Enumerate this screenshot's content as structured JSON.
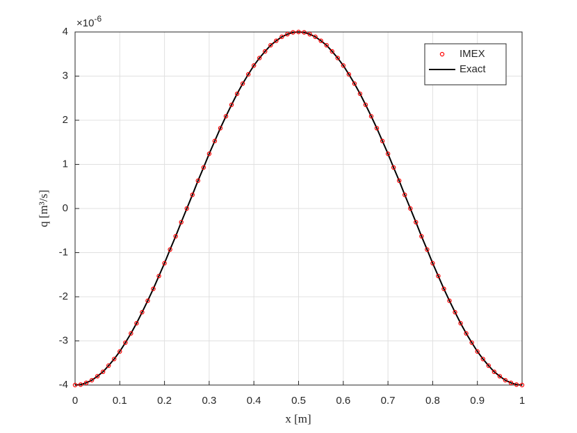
{
  "chart_data": {
    "type": "line",
    "xlabel": "x [m]",
    "ylabel": "q [m³/s]",
    "y_multiplier": {
      "base": "×10",
      "exponent": "-6"
    },
    "x": [
      0,
      0.0125,
      0.025,
      0.0375,
      0.05,
      0.0625,
      0.075,
      0.0875,
      0.1,
      0.1125,
      0.125,
      0.1375,
      0.15,
      0.1625,
      0.175,
      0.1875,
      0.2,
      0.2125,
      0.225,
      0.2375,
      0.25,
      0.2625,
      0.275,
      0.2875,
      0.3,
      0.3125,
      0.325,
      0.3375,
      0.35,
      0.3625,
      0.375,
      0.3875,
      0.4,
      0.4125,
      0.425,
      0.4375,
      0.45,
      0.4625,
      0.475,
      0.4875,
      0.5,
      0.5125,
      0.525,
      0.5375,
      0.55,
      0.5625,
      0.575,
      0.5875,
      0.6,
      0.6125,
      0.625,
      0.6375,
      0.65,
      0.6625,
      0.675,
      0.6875,
      0.7,
      0.7125,
      0.725,
      0.7375,
      0.75,
      0.7625,
      0.775,
      0.7875,
      0.8,
      0.8125,
      0.825,
      0.8375,
      0.85,
      0.8625,
      0.875,
      0.8875,
      0.9,
      0.9125,
      0.925,
      0.9375,
      0.95,
      0.9625,
      0.975,
      0.9875,
      1
    ],
    "series": [
      {
        "name": "IMEX",
        "color": "#ff0000",
        "mode": "markers",
        "values": [
          -4,
          -3.99,
          -3.95,
          -3.89,
          -3.8,
          -3.7,
          -3.56,
          -3.41,
          -3.24,
          -3.04,
          -2.83,
          -2.6,
          -2.35,
          -2.09,
          -1.82,
          -1.53,
          -1.24,
          -0.93,
          -0.63,
          -0.31,
          0,
          0.31,
          0.63,
          0.93,
          1.24,
          1.53,
          1.82,
          2.09,
          2.35,
          2.6,
          2.83,
          3.04,
          3.24,
          3.41,
          3.56,
          3.7,
          3.8,
          3.89,
          3.95,
          3.99,
          4,
          3.99,
          3.95,
          3.89,
          3.8,
          3.7,
          3.56,
          3.41,
          3.24,
          3.04,
          2.83,
          2.6,
          2.35,
          2.09,
          1.82,
          1.53,
          1.24,
          0.93,
          0.63,
          0.31,
          0,
          -0.31,
          -0.63,
          -0.93,
          -1.24,
          -1.53,
          -1.82,
          -2.09,
          -2.35,
          -2.6,
          -2.83,
          -3.04,
          -3.24,
          -3.41,
          -3.56,
          -3.7,
          -3.8,
          -3.89,
          -3.95,
          -3.99,
          -4
        ]
      },
      {
        "name": "Exact",
        "color": "#000000",
        "mode": "line",
        "values": [
          -4,
          -3.99,
          -3.95,
          -3.89,
          -3.8,
          -3.7,
          -3.56,
          -3.41,
          -3.24,
          -3.04,
          -2.83,
          -2.6,
          -2.35,
          -2.09,
          -1.82,
          -1.53,
          -1.24,
          -0.93,
          -0.63,
          -0.31,
          0,
          0.31,
          0.63,
          0.93,
          1.24,
          1.53,
          1.82,
          2.09,
          2.35,
          2.6,
          2.83,
          3.04,
          3.24,
          3.41,
          3.56,
          3.7,
          3.8,
          3.89,
          3.95,
          3.99,
          4,
          3.99,
          3.95,
          3.89,
          3.8,
          3.7,
          3.56,
          3.41,
          3.24,
          3.04,
          2.83,
          2.6,
          2.35,
          2.09,
          1.82,
          1.53,
          1.24,
          0.93,
          0.63,
          0.31,
          0,
          -0.31,
          -0.63,
          -0.93,
          -1.24,
          -1.53,
          -1.82,
          -2.09,
          -2.35,
          -2.6,
          -2.83,
          -3.04,
          -3.24,
          -3.41,
          -3.56,
          -3.7,
          -3.8,
          -3.89,
          -3.95,
          -3.99,
          -4
        ]
      }
    ],
    "xlim": [
      0,
      1
    ],
    "xticks": [
      0,
      0.1,
      0.2,
      0.3,
      0.4,
      0.5,
      0.6,
      0.7,
      0.8,
      0.9,
      1
    ],
    "ylim": [
      -4,
      4
    ],
    "yticks": [
      -4,
      -3,
      -2,
      -1,
      0,
      1,
      2,
      3,
      4
    ],
    "grid": true,
    "legend": "upper right"
  }
}
